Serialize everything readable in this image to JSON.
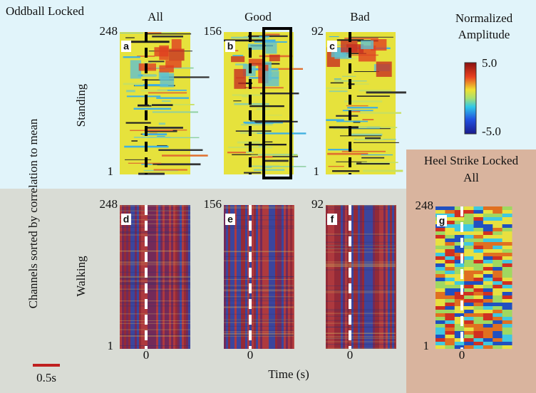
{
  "header": {
    "title": "Oddball Locked"
  },
  "columns": [
    "All",
    "Good",
    "Bad"
  ],
  "rows": [
    "Standing",
    "Walking"
  ],
  "y_axis_label": "Channels sorted by correlation to mean",
  "x_axis_label": "Time (s)",
  "panels": [
    {
      "label": "a",
      "y_top": "248",
      "y_bottom": "1"
    },
    {
      "label": "b",
      "y_top": "156"
    },
    {
      "label": "c",
      "y_top": "92",
      "y_bottom": "1"
    },
    {
      "label": "d",
      "y_top": "248",
      "y_bottom": "1",
      "x_tick": "0"
    },
    {
      "label": "e",
      "y_top": "156",
      "x_tick": "0"
    },
    {
      "label": "f",
      "y_top": "92",
      "x_tick": "0"
    }
  ],
  "colorbar": {
    "title": [
      "Normalized",
      "Amplitude"
    ],
    "max": "5.0",
    "min": "-5.0"
  },
  "heel_strike": {
    "title": "Heel Strike Locked",
    "subtitle": "All",
    "panel": {
      "label": "g",
      "y_top": "248",
      "y_bottom": "1",
      "x_tick": "0"
    }
  },
  "scale_bar": "0.5s"
}
